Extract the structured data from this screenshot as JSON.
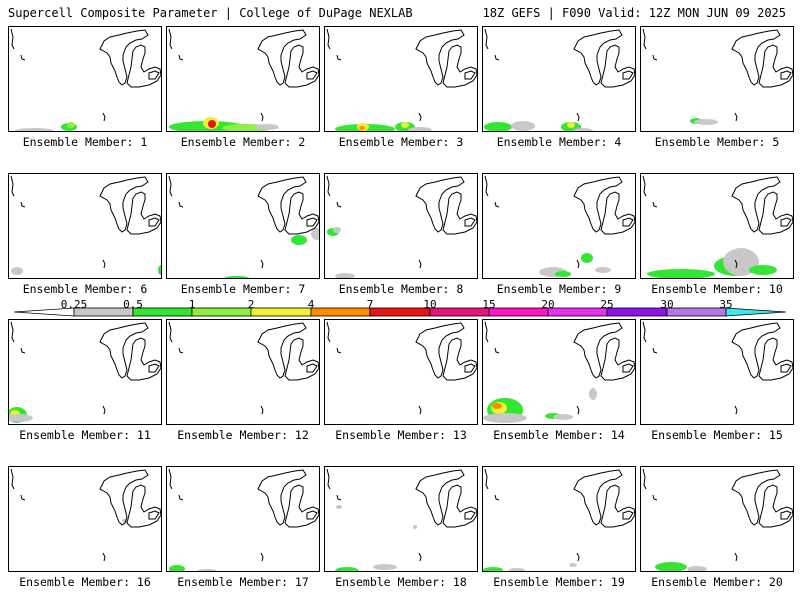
{
  "header": {
    "title": "Supercell Composite Parameter | College of DuPage NEXLAB",
    "run_info": "18Z GEFS | F090 Valid: 12Z MON JUN 09 2025"
  },
  "panels": [
    {
      "label": "Ensemble Member: 1"
    },
    {
      "label": "Ensemble Member: 2"
    },
    {
      "label": "Ensemble Member: 3"
    },
    {
      "label": "Ensemble Member: 4"
    },
    {
      "label": "Ensemble Member: 5"
    },
    {
      "label": "Ensemble Member: 6"
    },
    {
      "label": "Ensemble Member: 7"
    },
    {
      "label": "Ensemble Member: 8"
    },
    {
      "label": "Ensemble Member: 9"
    },
    {
      "label": "Ensemble Member: 10"
    },
    {
      "label": "Ensemble Member: 11"
    },
    {
      "label": "Ensemble Member: 12"
    },
    {
      "label": "Ensemble Member: 13"
    },
    {
      "label": "Ensemble Member: 14"
    },
    {
      "label": "Ensemble Member: 15"
    },
    {
      "label": "Ensemble Member: 16"
    },
    {
      "label": "Ensemble Member: 17"
    },
    {
      "label": "Ensemble Member: 18"
    },
    {
      "label": "Ensemble Member: 19"
    },
    {
      "label": "Ensemble Member: 20"
    }
  ],
  "legend": {
    "ticks": [
      "0.25",
      "0.5",
      "1",
      "2",
      "4",
      "7",
      "10",
      "15",
      "20",
      "25",
      "30",
      "35"
    ],
    "colors": [
      "#c8c8c8",
      "#32e632",
      "#8cf03c",
      "#f0f032",
      "#ff8c00",
      "#e61414",
      "#e6147a",
      "#ff14c8",
      "#e632f0",
      "#8c14e6",
      "#b478e6",
      "#3ce6f0"
    ]
  }
}
